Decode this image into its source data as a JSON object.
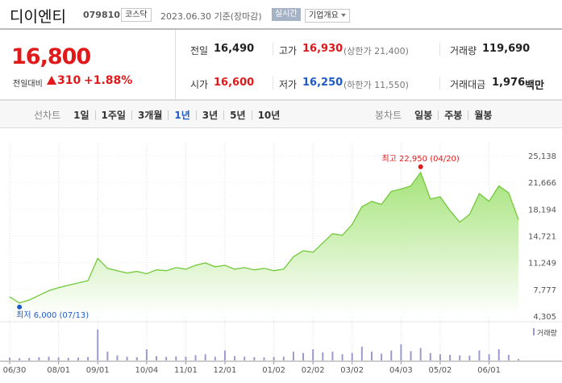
{
  "header": {
    "name": "디이엔티",
    "code": "079810",
    "market": "코스닥",
    "date": "2023.06.30 기준(장마감)",
    "realtime": "실시간",
    "company_info": "기업개요"
  },
  "price": {
    "current": "16,800",
    "change_label": "전일대비",
    "change": "310",
    "change_rate": "+1.88%"
  },
  "stats": [
    {
      "label": "전일",
      "value": "16,490",
      "color": "#222222"
    },
    {
      "label": "고가",
      "value": "16,930",
      "note": "(상한가 21,400)",
      "color": "#e0191a"
    },
    {
      "label": "거래량",
      "value": "119,690",
      "color": "#222222"
    },
    {
      "label": "시가",
      "value": "16,600",
      "color": "#e0191a"
    },
    {
      "label": "저가",
      "value": "16,250",
      "note": "(하한가 11,550)",
      "color": "#1e5bc6"
    },
    {
      "label": "거래대금",
      "value": "1,976",
      "unit": "백만",
      "color": "#222222"
    }
  ],
  "tabs": {
    "line_label": "선차트",
    "line_periods": [
      "1일",
      "1주일",
      "3개월",
      "1년",
      "3년",
      "5년",
      "10년"
    ],
    "selected": "1년",
    "candle_label": "봉차트",
    "candle_periods": [
      "일봉",
      "주봉",
      "월봉"
    ]
  },
  "chart_data": {
    "type": "area",
    "categories": [
      "06/30",
      null,
      null,
      null,
      null,
      "08/01",
      null,
      null,
      null,
      "09/01",
      null,
      null,
      null,
      null,
      "10/04",
      null,
      null,
      null,
      "11/01",
      null,
      null,
      null,
      "12/01",
      null,
      null,
      null,
      null,
      "01/02",
      null,
      null,
      null,
      "02/02",
      null,
      null,
      null,
      "03/02",
      null,
      null,
      null,
      null,
      "04/03",
      null,
      null,
      null,
      "05/02",
      null,
      null,
      null,
      null,
      "06/01",
      null,
      null,
      null
    ],
    "values": [
      6800,
      6000,
      6400,
      7000,
      7600,
      8000,
      8300,
      8600,
      8900,
      11800,
      10500,
      10200,
      9900,
      10100,
      9800,
      10300,
      10200,
      10600,
      10400,
      10900,
      11200,
      10700,
      10900,
      10400,
      10600,
      10300,
      10500,
      10200,
      10400,
      12000,
      12800,
      12600,
      13800,
      15000,
      14800,
      16200,
      18500,
      19200,
      18800,
      20500,
      20800,
      21200,
      22950,
      19500,
      19800,
      18000,
      16500,
      17500,
      20200,
      19200,
      21200,
      20300,
      16800
    ],
    "color": "#72c93a",
    "ylim": [
      4305,
      25138
    ],
    "yticks": [
      {
        "value": 4305,
        "label": "4,305"
      },
      {
        "value": 7777,
        "label": "7,777"
      },
      {
        "value": 11249,
        "label": "11,249"
      },
      {
        "value": 14721,
        "label": "14,721"
      },
      {
        "value": 18194,
        "label": "18,194"
      },
      {
        "value": 21666,
        "label": "21,666"
      },
      {
        "value": 25138,
        "label": "25,138"
      }
    ],
    "grid": true,
    "max_label": "최고 22,950 (04/20)",
    "max_color": "#e0191a",
    "min_label": "최저 6,000 (07/13)",
    "min_color": "#1e5bc6",
    "volume": {
      "name": "거래량",
      "color": "#9a9ad0",
      "ylim": [
        0,
        2600000
      ],
      "values": [
        220000,
        180000,
        200000,
        260000,
        300000,
        240000,
        210000,
        230000,
        280000,
        2500000,
        700000,
        400000,
        300000,
        260000,
        900000,
        350000,
        280000,
        320000,
        300000,
        420000,
        500000,
        300000,
        800000,
        350000,
        300000,
        260000,
        240000,
        280000,
        300000,
        700000,
        600000,
        900000,
        650000,
        700000,
        500000,
        600000,
        1100000,
        700000,
        550000,
        800000,
        1300000,
        750000,
        1000000,
        600000,
        500000,
        450000,
        400000,
        380000,
        800000,
        500000,
        900000,
        450000,
        119690
      ]
    }
  }
}
